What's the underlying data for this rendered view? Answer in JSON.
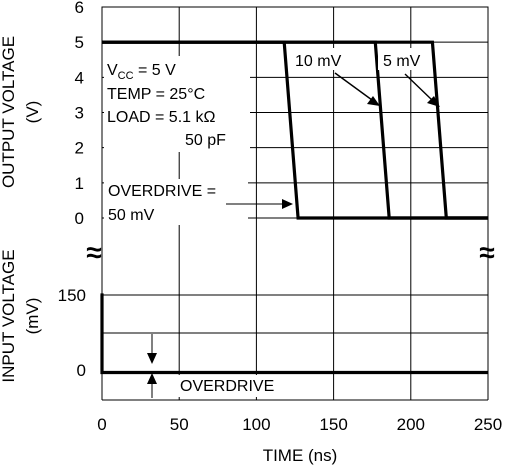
{
  "chart_data": {
    "type": "line",
    "x_axis": {
      "label": "TIME (ns)",
      "range": [
        0,
        250
      ],
      "ticks": [
        0,
        50,
        100,
        150,
        200,
        250
      ]
    },
    "upper_panel": {
      "ylabel_line1": "OUTPUT VOLTAGE",
      "ylabel_line2": "(V)",
      "ylim": [
        0,
        6
      ],
      "ticks": [
        0,
        1,
        2,
        3,
        4,
        5,
        6
      ],
      "series": [
        {
          "name": "50 mV",
          "points": [
            [
              0,
              5
            ],
            [
              118,
              5
            ],
            [
              127,
              0
            ],
            [
              250,
              0
            ]
          ]
        },
        {
          "name": "10 mV",
          "points": [
            [
              0,
              5
            ],
            [
              177,
              5
            ],
            [
              186,
              0
            ],
            [
              250,
              0
            ]
          ]
        },
        {
          "name": "5 mV",
          "points": [
            [
              0,
              5
            ],
            [
              214,
              5
            ],
            [
              223,
              0
            ],
            [
              250,
              0
            ]
          ]
        }
      ],
      "conditions": {
        "vcc_main": "V",
        "vcc_sub": "CC",
        "vcc_value": " = 5 V",
        "temp": "TEMP = 25°C",
        "load": "LOAD = 5.1 kΩ",
        "load2": "50 pF"
      },
      "annotations": {
        "overdrive_line1": "OVERDRIVE =",
        "overdrive_line2": "50 mV",
        "label_10mv": "10 mV",
        "label_5mv": "5 mV"
      }
    },
    "lower_panel": {
      "ylabel_line1": "INPUT VOLTAGE",
      "ylabel_line2": "(mV)",
      "ticks": [
        0,
        150
      ],
      "series": [
        {
          "points": [
            [
              -1,
              150
            ],
            [
              0,
              150
            ],
            [
              0,
              -5
            ],
            [
              250,
              -5
            ]
          ]
        }
      ],
      "annotation": "OVERDRIVE"
    },
    "grid": true,
    "break_symbol": "≈"
  }
}
